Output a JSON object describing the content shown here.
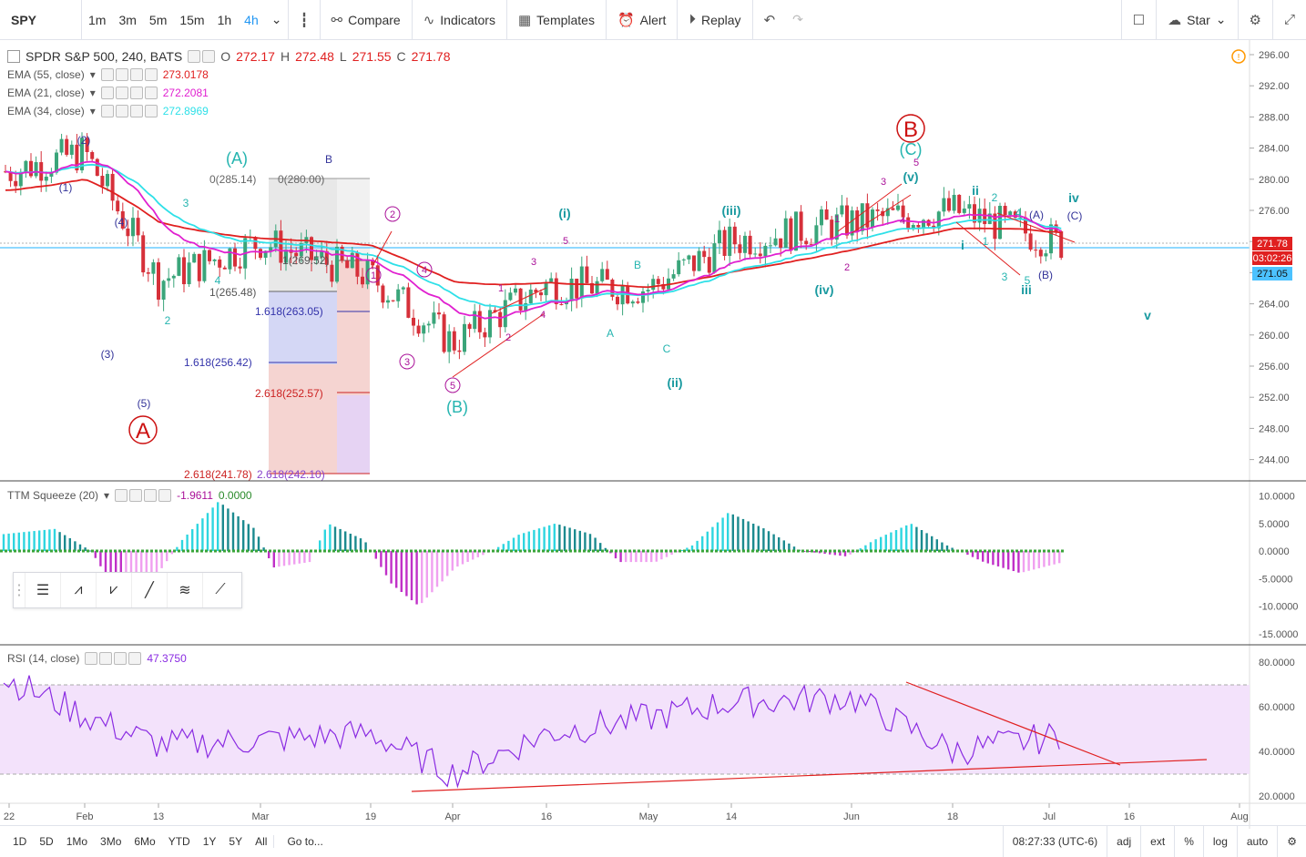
{
  "toolbar": {
    "symbol": "SPY",
    "timeframes": [
      "1m",
      "3m",
      "5m",
      "15m",
      "1h",
      "4h"
    ],
    "active_timeframe": "4h",
    "compare": "Compare",
    "indicators": "Indicators",
    "templates": "Templates",
    "alert": "Alert",
    "replay": "Replay",
    "star": "Star"
  },
  "legend": {
    "title": "SPDR S&P 500, 240, BATS",
    "open_label": "O",
    "open": "272.17",
    "high_label": "H",
    "high": "272.48",
    "low_label": "L",
    "low": "271.55",
    "close_label": "C",
    "close": "271.78",
    "ema55_label": "EMA (55, close)",
    "ema55": "273.0178",
    "ema55_color": "#e02020",
    "ema21_label": "EMA (21, close)",
    "ema21": "272.2081",
    "ema21_color": "#e020d0",
    "ema34_label": "EMA (34, close)",
    "ema34": "272.8969",
    "ema34_color": "#2ee0e8",
    "ttm_label": "TTM Squeeze (20)",
    "ttm_val1": "-1.9611",
    "ttm_val2": "0.0000",
    "rsi_label": "RSI (14, close)",
    "rsi_val": "47.3750"
  },
  "price_axis": {
    "ticks": [
      "296.00",
      "292.00",
      "288.00",
      "284.00",
      "280.00",
      "276.00",
      "272.00",
      "268.00",
      "264.00",
      "260.00",
      "256.00",
      "252.00",
      "248.00",
      "244.00"
    ],
    "last_price": "271.78",
    "countdown": "03:02:26",
    "line_price": "271.05"
  },
  "ttm_axis": [
    "10.0000",
    "5.0000",
    "0.0000",
    "-5.0000",
    "-10.0000",
    "-15.0000"
  ],
  "rsi_axis": [
    "80.0000",
    "60.0000",
    "40.0000",
    "20.0000"
  ],
  "time_axis": [
    "22",
    "Feb",
    "13",
    "Mar",
    "19",
    "Apr",
    "16",
    "May",
    "14",
    "Jun",
    "18",
    "Jul",
    "16",
    "Aug"
  ],
  "fib": {
    "labels": [
      "0(285.14)",
      "0(280.00)",
      "1(269.52)",
      "1(265.48)",
      "1.618(263.05)",
      "1.618(256.42)",
      "2.618(252.57)",
      "2.618(241.78)",
      "2.618(242.10)"
    ]
  },
  "wave_labels": {
    "big_a": "A",
    "big_b": "B",
    "paren_a": "(A)",
    "paren_b": "(B)",
    "paren_c": "(C)",
    "w_i": "(i)",
    "w_ii": "(ii)",
    "w_iii": "(iii)",
    "w_iv": "(iv)",
    "w_v": "(v)",
    "roman_i": "i",
    "roman_ii": "ii",
    "roman_iii": "iii",
    "roman_iv": "iv",
    "roman_v": "v",
    "p1": "(1)",
    "p2": "(2)",
    "p3": "(3)",
    "p4": "(4)",
    "p5": "(5)",
    "c1": "1",
    "c2": "2",
    "c3": "3",
    "c4": "4",
    "c5": "5",
    "n1": "1",
    "n2": "2",
    "n3": "3",
    "n4": "4",
    "n5": "5",
    "la": "A",
    "lb": "B",
    "lc": "C",
    "sa": "(A)",
    "sb": "(B)",
    "sc": "(C)"
  },
  "bottom": {
    "ranges": [
      "1D",
      "5D",
      "1Mo",
      "3Mo",
      "6Mo",
      "YTD",
      "1Y",
      "5Y",
      "All"
    ],
    "goto": "Go to...",
    "time": "08:27:33 (UTC-6)",
    "adj": "adj",
    "ext": "ext",
    "pct": "%",
    "log": "log",
    "auto": "auto"
  },
  "chart_data": {
    "type": "line",
    "title": "SPDR S&P 500, 240, BATS",
    "x": [
      "22",
      "Feb",
      "13",
      "Mar",
      "19",
      "Apr",
      "16",
      "May",
      "14",
      "Jun",
      "18",
      "Jul"
    ],
    "series": [
      {
        "name": "SPDR S&P 500, 240, BATS",
        "values": [
          281.0,
          283.5,
          267.0,
          272.0,
          267.5,
          259.0,
          266.5,
          266.0,
          272.0,
          274.5,
          276.0,
          271.8
        ]
      },
      {
        "name": "EMA (55, close)",
        "values": [
          277.0,
          279.0,
          272.0,
          271.5,
          271.5,
          266.5,
          267.5,
          266.5,
          268.5,
          271.0,
          274.0,
          273.0
        ]
      },
      {
        "name": "RSI (14, close)",
        "values": [
          72,
          56,
          43,
          45,
          48,
          30,
          48,
          55,
          62,
          64,
          40,
          47
        ]
      }
    ],
    "ylim": [
      242,
      297
    ],
    "grid": true
  }
}
